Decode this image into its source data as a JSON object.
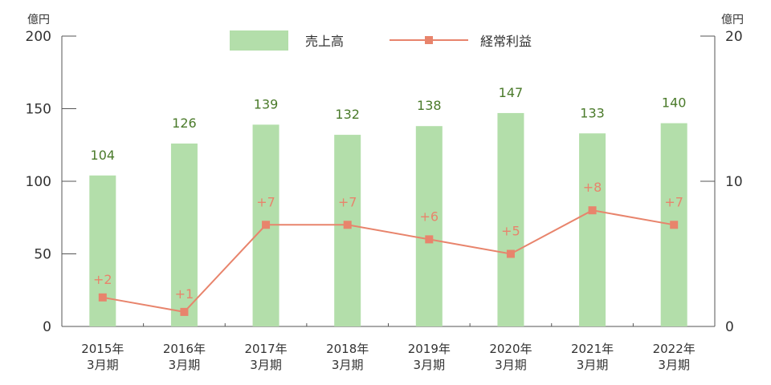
{
  "chart_data": {
    "type": "bar",
    "categories": [
      [
        "2015年",
        "3月期"
      ],
      [
        "2016年",
        "3月期"
      ],
      [
        "2017年",
        "3月期"
      ],
      [
        "2018年",
        "3月期"
      ],
      [
        "2019年",
        "3月期"
      ],
      [
        "2020年",
        "3月期"
      ],
      [
        "2021年",
        "3月期"
      ],
      [
        "2022年",
        "3月期"
      ]
    ],
    "series": [
      {
        "name": "売上高",
        "type": "bar",
        "axis": "left",
        "color": "#b3deaa",
        "label_color": "#4a7a2a",
        "values": [
          104,
          126,
          139,
          132,
          138,
          147,
          133,
          140
        ],
        "labels": [
          "104",
          "126",
          "139",
          "132",
          "138",
          "147",
          "133",
          "140"
        ]
      },
      {
        "name": "経常利益",
        "type": "line",
        "axis": "right",
        "color": "#e8846c",
        "values": [
          2,
          1,
          7,
          7,
          6,
          5,
          8,
          7
        ],
        "labels": [
          "+2",
          "+1",
          "+7",
          "+7",
          "+6",
          "+5",
          "+8",
          "+7"
        ]
      }
    ],
    "y_left": {
      "unit": "億円",
      "range": [
        0,
        200
      ],
      "ticks": [
        0,
        50,
        100,
        150,
        200
      ]
    },
    "y_right": {
      "unit": "億円",
      "range": [
        0,
        20
      ],
      "ticks": [
        0,
        10,
        20
      ]
    },
    "legend_position": "top-center",
    "grid": false
  }
}
